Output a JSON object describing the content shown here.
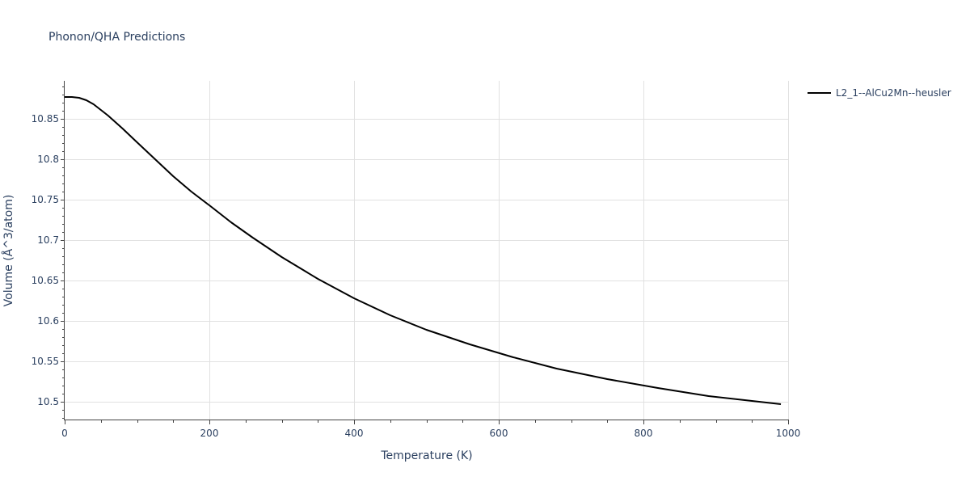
{
  "chart_data": {
    "type": "line",
    "title": "Phonon/QHA Predictions",
    "xlabel": "Temperature (K)",
    "ylabel": "Volume (Å^3/atom)",
    "xlim": [
      0,
      1000
    ],
    "ylim": [
      10.477,
      10.897
    ],
    "x_ticks": [
      0,
      200,
      400,
      600,
      800,
      1000
    ],
    "x_tick_labels": [
      "0",
      "200",
      "400",
      "600",
      "800",
      "1000"
    ],
    "y_ticks": [
      10.5,
      10.55,
      10.6,
      10.65,
      10.7,
      10.75,
      10.8,
      10.85
    ],
    "y_tick_labels": [
      "10.5",
      "10.55",
      "10.6",
      "10.65",
      "10.7",
      "10.75",
      "10.8",
      "10.85"
    ],
    "grid": true,
    "legend_position": "top-right outside",
    "series": [
      {
        "name": "L2_1--AlCu2Mn--heusler",
        "color": "#000000",
        "x": [
          0,
          10,
          20,
          30,
          40,
          50,
          60,
          70,
          80,
          100,
          125,
          150,
          175,
          200,
          230,
          260,
          300,
          350,
          400,
          450,
          500,
          560,
          620,
          680,
          750,
          820,
          890,
          950,
          990
        ],
        "y": [
          10.877,
          10.877,
          10.876,
          10.873,
          10.868,
          10.861,
          10.854,
          10.846,
          10.838,
          10.821,
          10.8,
          10.779,
          10.76,
          10.743,
          10.722,
          10.703,
          10.679,
          10.652,
          10.628,
          10.607,
          10.589,
          10.571,
          10.555,
          10.541,
          10.528,
          10.517,
          10.507,
          10.501,
          10.497
        ]
      }
    ]
  }
}
